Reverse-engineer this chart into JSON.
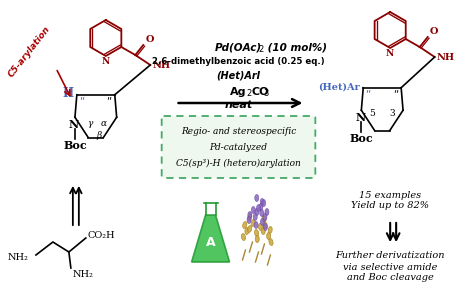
{
  "bg_color": "#ffffff",
  "c5_arylation_color": "#aa0000",
  "dark_red": "#8b0000",
  "het_ar_color": "#4466bb",
  "black": "#000000",
  "condition_line1": "Pd(OAc)",
  "condition_line1_sub": "2",
  "condition_line1_rest": " (10 mol%)",
  "condition_line2": "2,6-dimethylbenzoic acid (0.25 eq.)",
  "condition_line3": "(Het)ArI",
  "condition_line4_bold": "Ag",
  "condition_line4_sub": "2",
  "condition_line4_rest": "CO",
  "condition_line4_sub2": "3",
  "condition_line5": "neat",
  "box_text_line1": "Regio- and stereospecific",
  "box_text_line2": "Pd-catalyzed",
  "box_text_line3": "C5(sp³)-H (hetero)arylation",
  "examples_line1": "15 examples",
  "examples_line2": "Yield up to 82%",
  "further_line1": "Further derivatization",
  "further_line2": "via selective amide",
  "further_line3": "and Boc cleavage",
  "box_edge_color": "#44aa66",
  "box_face_color": "#eef8ee",
  "gray_line": "#bbbbbb"
}
